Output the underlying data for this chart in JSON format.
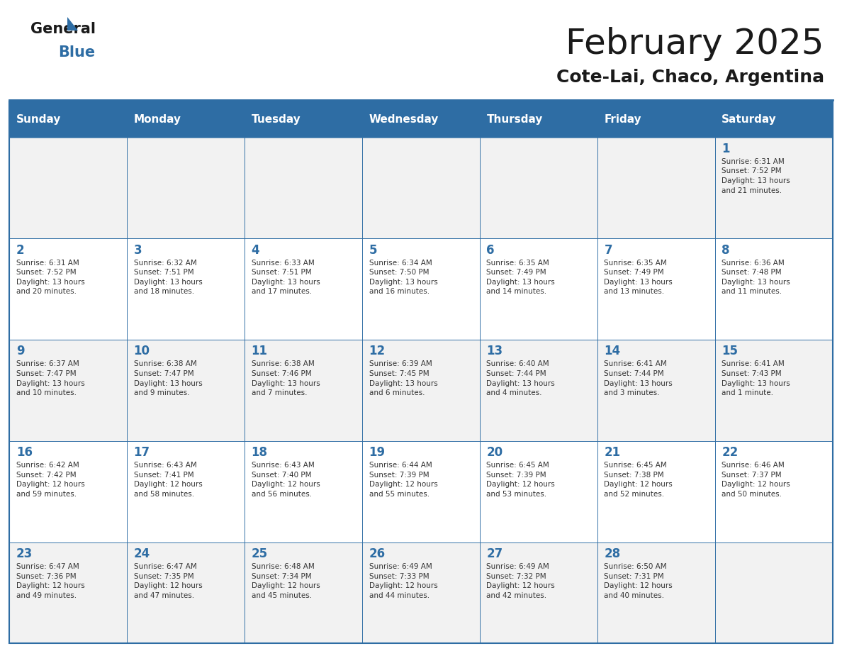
{
  "title": "February 2025",
  "subtitle": "Cote-Lai, Chaco, Argentina",
  "header_bg": "#2E6DA4",
  "header_text": "#FFFFFF",
  "cell_bg_light": "#F2F2F2",
  "cell_bg_white": "#FFFFFF",
  "border_color": "#2E6DA4",
  "day_names": [
    "Sunday",
    "Monday",
    "Tuesday",
    "Wednesday",
    "Thursday",
    "Friday",
    "Saturday"
  ],
  "title_color": "#1a1a1a",
  "subtitle_color": "#1a1a1a",
  "day_number_color": "#2E6DA4",
  "cell_text_color": "#333333",
  "weeks": [
    [
      {
        "day": 0,
        "info": ""
      },
      {
        "day": 0,
        "info": ""
      },
      {
        "day": 0,
        "info": ""
      },
      {
        "day": 0,
        "info": ""
      },
      {
        "day": 0,
        "info": ""
      },
      {
        "day": 0,
        "info": ""
      },
      {
        "day": 1,
        "info": "Sunrise: 6:31 AM\nSunset: 7:52 PM\nDaylight: 13 hours\nand 21 minutes."
      }
    ],
    [
      {
        "day": 2,
        "info": "Sunrise: 6:31 AM\nSunset: 7:52 PM\nDaylight: 13 hours\nand 20 minutes."
      },
      {
        "day": 3,
        "info": "Sunrise: 6:32 AM\nSunset: 7:51 PM\nDaylight: 13 hours\nand 18 minutes."
      },
      {
        "day": 4,
        "info": "Sunrise: 6:33 AM\nSunset: 7:51 PM\nDaylight: 13 hours\nand 17 minutes."
      },
      {
        "day": 5,
        "info": "Sunrise: 6:34 AM\nSunset: 7:50 PM\nDaylight: 13 hours\nand 16 minutes."
      },
      {
        "day": 6,
        "info": "Sunrise: 6:35 AM\nSunset: 7:49 PM\nDaylight: 13 hours\nand 14 minutes."
      },
      {
        "day": 7,
        "info": "Sunrise: 6:35 AM\nSunset: 7:49 PM\nDaylight: 13 hours\nand 13 minutes."
      },
      {
        "day": 8,
        "info": "Sunrise: 6:36 AM\nSunset: 7:48 PM\nDaylight: 13 hours\nand 11 minutes."
      }
    ],
    [
      {
        "day": 9,
        "info": "Sunrise: 6:37 AM\nSunset: 7:47 PM\nDaylight: 13 hours\nand 10 minutes."
      },
      {
        "day": 10,
        "info": "Sunrise: 6:38 AM\nSunset: 7:47 PM\nDaylight: 13 hours\nand 9 minutes."
      },
      {
        "day": 11,
        "info": "Sunrise: 6:38 AM\nSunset: 7:46 PM\nDaylight: 13 hours\nand 7 minutes."
      },
      {
        "day": 12,
        "info": "Sunrise: 6:39 AM\nSunset: 7:45 PM\nDaylight: 13 hours\nand 6 minutes."
      },
      {
        "day": 13,
        "info": "Sunrise: 6:40 AM\nSunset: 7:44 PM\nDaylight: 13 hours\nand 4 minutes."
      },
      {
        "day": 14,
        "info": "Sunrise: 6:41 AM\nSunset: 7:44 PM\nDaylight: 13 hours\nand 3 minutes."
      },
      {
        "day": 15,
        "info": "Sunrise: 6:41 AM\nSunset: 7:43 PM\nDaylight: 13 hours\nand 1 minute."
      }
    ],
    [
      {
        "day": 16,
        "info": "Sunrise: 6:42 AM\nSunset: 7:42 PM\nDaylight: 12 hours\nand 59 minutes."
      },
      {
        "day": 17,
        "info": "Sunrise: 6:43 AM\nSunset: 7:41 PM\nDaylight: 12 hours\nand 58 minutes."
      },
      {
        "day": 18,
        "info": "Sunrise: 6:43 AM\nSunset: 7:40 PM\nDaylight: 12 hours\nand 56 minutes."
      },
      {
        "day": 19,
        "info": "Sunrise: 6:44 AM\nSunset: 7:39 PM\nDaylight: 12 hours\nand 55 minutes."
      },
      {
        "day": 20,
        "info": "Sunrise: 6:45 AM\nSunset: 7:39 PM\nDaylight: 12 hours\nand 53 minutes."
      },
      {
        "day": 21,
        "info": "Sunrise: 6:45 AM\nSunset: 7:38 PM\nDaylight: 12 hours\nand 52 minutes."
      },
      {
        "day": 22,
        "info": "Sunrise: 6:46 AM\nSunset: 7:37 PM\nDaylight: 12 hours\nand 50 minutes."
      }
    ],
    [
      {
        "day": 23,
        "info": "Sunrise: 6:47 AM\nSunset: 7:36 PM\nDaylight: 12 hours\nand 49 minutes."
      },
      {
        "day": 24,
        "info": "Sunrise: 6:47 AM\nSunset: 7:35 PM\nDaylight: 12 hours\nand 47 minutes."
      },
      {
        "day": 25,
        "info": "Sunrise: 6:48 AM\nSunset: 7:34 PM\nDaylight: 12 hours\nand 45 minutes."
      },
      {
        "day": 26,
        "info": "Sunrise: 6:49 AM\nSunset: 7:33 PM\nDaylight: 12 hours\nand 44 minutes."
      },
      {
        "day": 27,
        "info": "Sunrise: 6:49 AM\nSunset: 7:32 PM\nDaylight: 12 hours\nand 42 minutes."
      },
      {
        "day": 28,
        "info": "Sunrise: 6:50 AM\nSunset: 7:31 PM\nDaylight: 12 hours\nand 40 minutes."
      },
      {
        "day": 0,
        "info": ""
      }
    ]
  ]
}
